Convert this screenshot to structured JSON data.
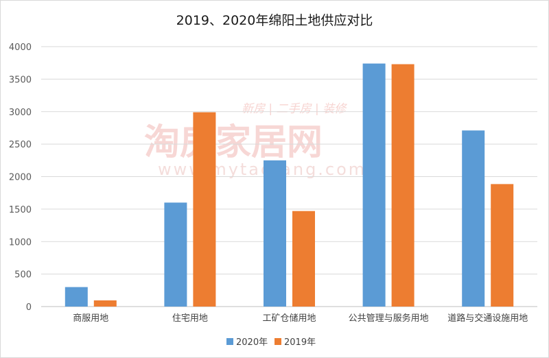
{
  "chart_data": {
    "type": "bar",
    "title": "2019、2020年绵阳土地供应对比",
    "categories": [
      "商服用地",
      "住宅用地",
      "工矿仓储用地",
      "公共管理与服务用地",
      "道路与交通设施用地"
    ],
    "series": [
      {
        "name": "2020年",
        "color": "#5b9bd5",
        "values": [
          300,
          1600,
          2250,
          3740,
          2710
        ]
      },
      {
        "name": "2019年",
        "color": "#ed7d31",
        "values": [
          95,
          2990,
          1470,
          3730,
          1885
        ]
      }
    ],
    "yticks": [
      "0",
      "500",
      "1000",
      "1500",
      "2000",
      "2500",
      "3000",
      "3500",
      "4000"
    ],
    "ylim": [
      0,
      4000
    ],
    "grid": true,
    "legend_position": "bottom"
  },
  "watermark": {
    "brand": "淘房家居网",
    "tagline": "新房 | 二手房 | 装修",
    "url": "www.mytaofang.com"
  }
}
